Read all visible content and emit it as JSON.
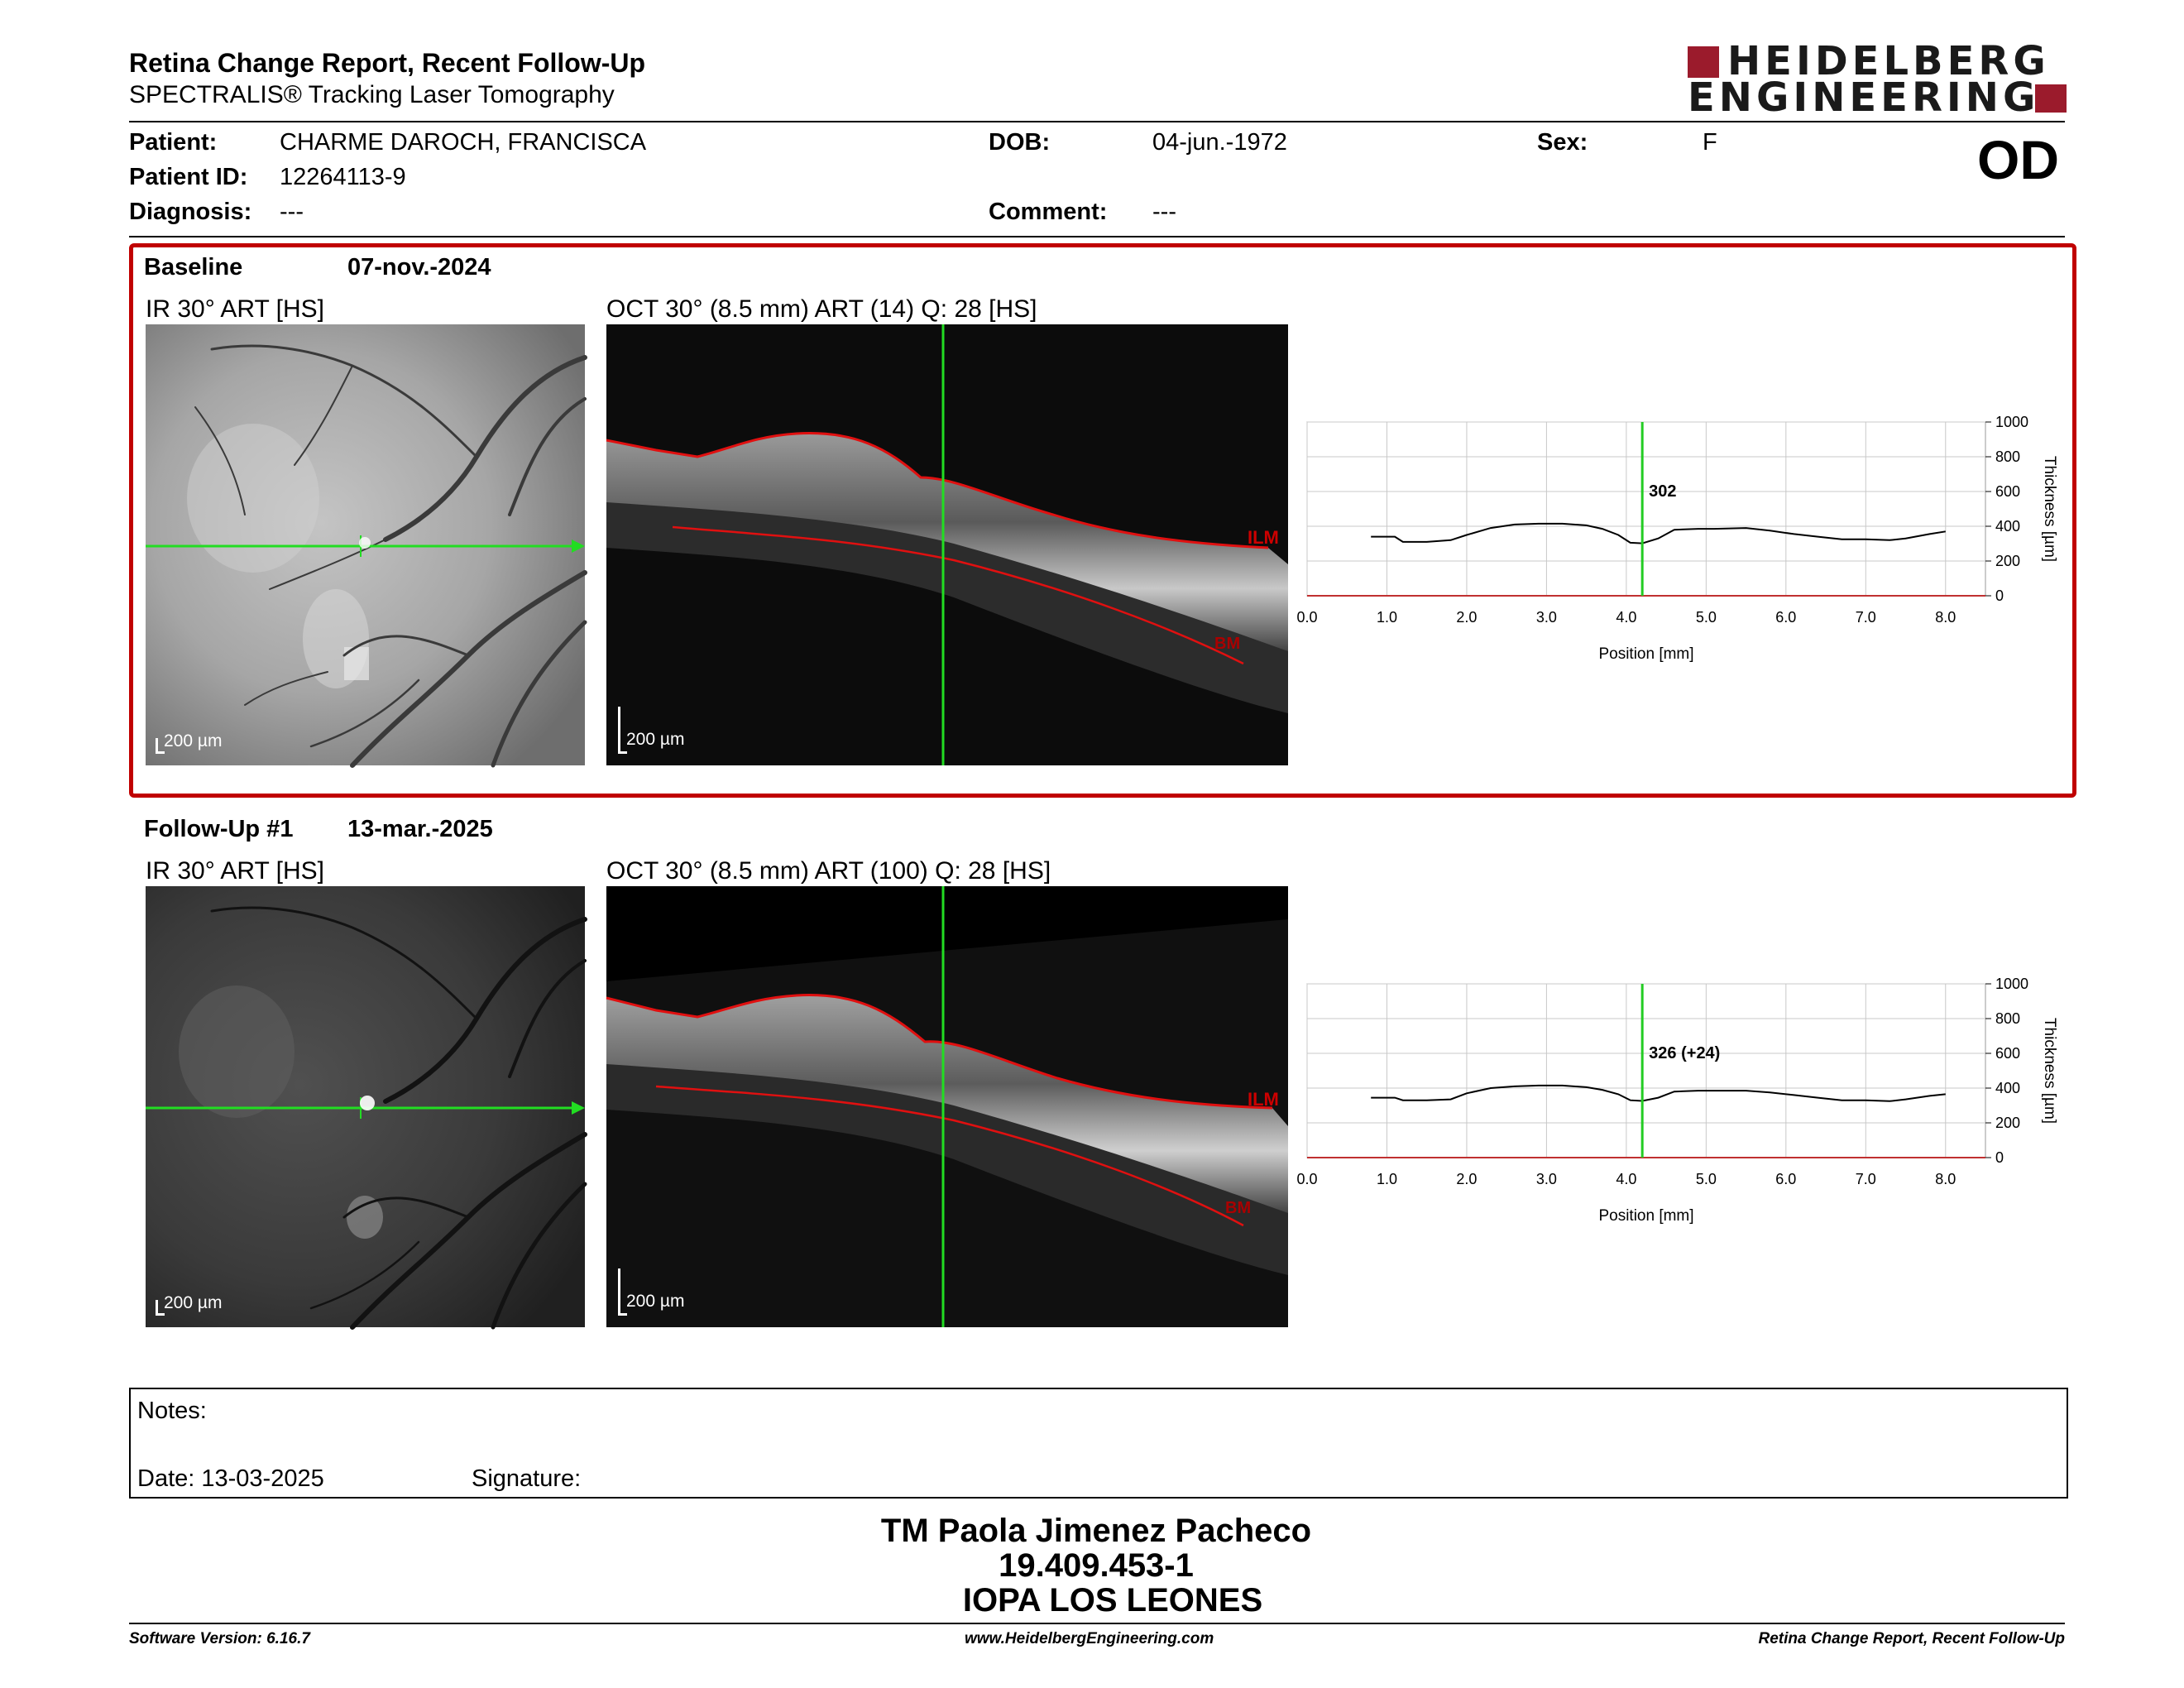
{
  "header": {
    "title": "Retina Change Report, Recent Follow-Up",
    "subtitle": "SPECTRALIS® Tracking Laser Tomography",
    "logo_line1": "HEIDELBERG",
    "logo_line2": "ENGINEERING"
  },
  "patient": {
    "patient_label": "Patient:",
    "patient_value": "CHARME DAROCH, FRANCISCA",
    "id_label": "Patient ID:",
    "id_value": "12264113-9",
    "diagnosis_label": "Diagnosis:",
    "diagnosis_value": "---",
    "dob_label": "DOB:",
    "dob_value": "04-jun.-1972",
    "comment_label": "Comment:",
    "comment_value": "---",
    "sex_label": "Sex:",
    "sex_value": "F",
    "eye": "OD"
  },
  "baseline": {
    "label": "Baseline",
    "date": "07-nov.-2024",
    "ir_title": "IR 30° ART [HS]",
    "oct_title": "OCT 30° (8.5 mm) ART (14) Q: 28 [HS]",
    "ir_scale": "200 µm",
    "oct_scale": "200 µm",
    "ilm_label": "ILM",
    "bm_label": "BM"
  },
  "followup": {
    "label": "Follow-Up #1",
    "date": "13-mar.-2025",
    "ir_title": "IR 30° ART [HS]",
    "oct_title": "OCT 30° (8.5 mm) ART (100) Q: 28 [HS]",
    "ir_scale": "200 µm",
    "oct_scale": "200 µm",
    "ilm_label": "ILM",
    "bm_label": "BM"
  },
  "chart_data": [
    {
      "type": "line",
      "xlabel": "Position [mm]",
      "ylabel": "Thickness [µm]",
      "xlim": [
        0,
        8.5
      ],
      "ylim": [
        0,
        1000
      ],
      "xticks": [
        "0.0",
        "1.0",
        "2.0",
        "3.0",
        "4.0",
        "5.0",
        "6.0",
        "7.0",
        "8.0"
      ],
      "yticks": [
        "0",
        "200",
        "400",
        "600",
        "800",
        "1000"
      ],
      "grid": true,
      "marker_x": 4.2,
      "marker_label": "302",
      "series": [
        {
          "color": "#000000",
          "x": [
            0.8,
            1.1,
            1.2,
            1.5,
            1.8,
            2.0,
            2.3,
            2.6,
            2.9,
            3.2,
            3.5,
            3.7,
            3.9,
            4.05,
            4.2,
            4.4,
            4.6,
            4.9,
            5.1,
            5.5,
            5.8,
            6.1,
            6.4,
            6.7,
            7.0,
            7.3,
            7.5,
            7.8,
            8.0
          ],
          "y": [
            340,
            340,
            310,
            310,
            320,
            350,
            390,
            410,
            415,
            415,
            405,
            385,
            350,
            305,
            302,
            330,
            380,
            385,
            385,
            390,
            375,
            355,
            340,
            325,
            325,
            320,
            330,
            355,
            370
          ]
        }
      ]
    },
    {
      "type": "line",
      "xlabel": "Position [mm]",
      "ylabel": "Thickness [µm]",
      "xlim": [
        0,
        8.5
      ],
      "ylim": [
        0,
        1000
      ],
      "xticks": [
        "0.0",
        "1.0",
        "2.0",
        "3.0",
        "4.0",
        "5.0",
        "6.0",
        "7.0",
        "8.0"
      ],
      "yticks": [
        "0",
        "200",
        "400",
        "600",
        "800",
        "1000"
      ],
      "grid": true,
      "marker_x": 4.2,
      "marker_label": "326 (+24)",
      "series": [
        {
          "color": "#000000",
          "x": [
            0.8,
            1.1,
            1.2,
            1.5,
            1.8,
            2.0,
            2.3,
            2.6,
            2.9,
            3.2,
            3.5,
            3.7,
            3.9,
            4.05,
            4.2,
            4.4,
            4.6,
            4.9,
            5.1,
            5.5,
            5.8,
            6.1,
            6.4,
            6.7,
            7.0,
            7.3,
            7.5,
            7.8,
            8.0
          ],
          "y": [
            345,
            345,
            330,
            330,
            335,
            370,
            400,
            410,
            415,
            415,
            405,
            390,
            365,
            330,
            326,
            345,
            380,
            385,
            385,
            385,
            375,
            360,
            345,
            330,
            330,
            325,
            335,
            355,
            365
          ]
        }
      ]
    }
  ],
  "notes": {
    "notes_label": "Notes:",
    "date_text": "Date: 13-03-2025",
    "signature_label": "Signature:"
  },
  "signature_block": {
    "name": "TM Paola Jimenez Pacheco",
    "rut": "19.409.453-1",
    "institution": "IOPA LOS LEONES"
  },
  "footer": {
    "software": "Software Version: 6.16.7",
    "website": "www.HeidelbergEngineering.com",
    "report_name": "Retina Change Report, Recent Follow-Up"
  },
  "colors": {
    "brand": "#9b1b2c",
    "frame": "#c00000",
    "scan_line": "#22dd22",
    "segmentation": "#e01010"
  }
}
